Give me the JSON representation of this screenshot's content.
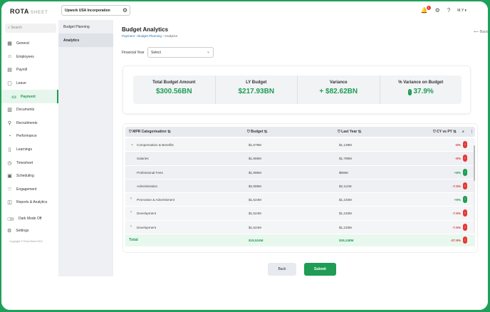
{
  "app": {
    "logo_main": "ROTA",
    "logo_sub": "SHEET",
    "company": "Upwork USA Incorporation",
    "user": "M.Y"
  },
  "sidebar": {
    "search_placeholder": "Search",
    "items": [
      {
        "label": "General",
        "icon": "grid-icon"
      },
      {
        "label": "Employees",
        "icon": "users-icon"
      },
      {
        "label": "Payroll",
        "icon": "wallet-icon"
      },
      {
        "label": "Leave",
        "icon": "calendar-icon"
      },
      {
        "label": "Payment",
        "icon": "card-icon",
        "active": true
      },
      {
        "label": "Documents",
        "icon": "document-icon"
      },
      {
        "label": "Recruitments",
        "icon": "recruit-icon"
      },
      {
        "label": "Performance",
        "icon": "chart-icon"
      },
      {
        "label": "Learnings",
        "icon": "book-icon"
      },
      {
        "label": "Timesheet",
        "icon": "clock-icon"
      },
      {
        "label": "Scheduling",
        "icon": "schedule-icon"
      },
      {
        "label": "Engagement",
        "icon": "heart-icon"
      },
      {
        "label": "Reports & Analytics",
        "icon": "report-icon"
      }
    ],
    "dark_mode": "Dark Mode Off",
    "settings": "Settings",
    "copyright": "Copyright © Rota Sheet 2021"
  },
  "subnav": {
    "items": [
      "Budget Planning",
      "Analytics"
    ]
  },
  "main": {
    "title": "Budget Analytics",
    "breadcrumb": [
      "Payment",
      "Budget Planning",
      "Analytics"
    ],
    "back": "Back",
    "fy_label": "Financial Year",
    "fy_value": "Select"
  },
  "summary": [
    {
      "label": "Total Budget Amount",
      "value": "$300.56BN"
    },
    {
      "label": "LY Budget",
      "value": "$217.93BN"
    },
    {
      "label": "Variance",
      "value": "+ $82.62BN"
    },
    {
      "label": "% Variance on Budget",
      "value": "37.9%"
    }
  ],
  "table": {
    "headers": [
      "MPR Categorisation",
      "Budget",
      "Last Year",
      "CY vs PY"
    ],
    "rows": [
      {
        "type": "group",
        "expanded": true,
        "name": "Compensation & Benefits",
        "budget": "$1,679M",
        "last": "$1,139M",
        "pct": "-6%",
        "dir": "neg"
      },
      {
        "type": "child",
        "name": "Salaries",
        "budget": "$1,866M",
        "last": "$1,789M",
        "pct": "-5%",
        "dir": "neg"
      },
      {
        "type": "child",
        "name": "Professional Fees",
        "budget": "$1,996M",
        "last": "$996K",
        "pct": "+8%",
        "dir": "pos"
      },
      {
        "type": "child",
        "name": "Administration",
        "budget": "$2,999M",
        "last": "$2,112M",
        "pct": "-7.5%",
        "dir": "neg"
      },
      {
        "type": "group",
        "expanded": false,
        "name": "Promotion & Advertisment",
        "budget": "$1,524M",
        "last": "$1,233M",
        "pct": "+9%",
        "dir": "pos"
      },
      {
        "type": "group",
        "expanded": false,
        "name": "Development",
        "budget": "$1,524M",
        "last": "$1,233M",
        "pct": "-7.5%",
        "dir": "neg"
      },
      {
        "type": "group",
        "expanded": false,
        "name": "Development",
        "budget": "$1,524M",
        "last": "$1,233M",
        "pct": "-7.5%",
        "dir": "neg"
      }
    ],
    "total": {
      "name": "Total",
      "budget": "$18,524M",
      "last": "$35,248M",
      "pct": "-27.9%",
      "dir": "neg"
    }
  },
  "buttons": {
    "back": "Back",
    "submit": "Submit"
  }
}
